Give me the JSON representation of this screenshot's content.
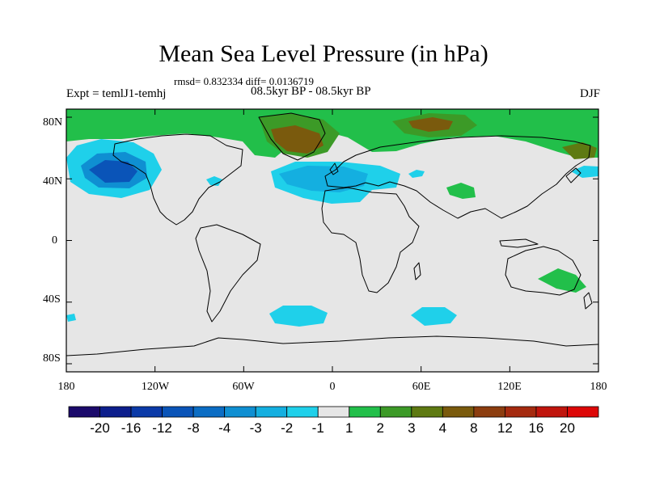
{
  "title": "Mean Sea Level Pressure (in hPa)",
  "stats": "rmsd= 0.832334 diff= 0.0136719",
  "experiment": "Expt = temlJ1-temhj",
  "period": "08.5kyr BP - 08.5kyr BP",
  "season": "DJF",
  "lat_labels": [
    "80N",
    "40N",
    "0",
    "40S",
    "80S"
  ],
  "lon_labels": [
    "180",
    "120W",
    "60W",
    "0",
    "60E",
    "120E",
    "180"
  ],
  "colorbar": {
    "colors": [
      "#1b0a6b",
      "#0d1e8c",
      "#0b3aa8",
      "#0a54b8",
      "#0b6dc4",
      "#0f8fd2",
      "#14afe0",
      "#1fd0ea",
      "#e6e6e6",
      "#22bf4a",
      "#3c9a27",
      "#5e7a12",
      "#7a5a0d",
      "#8c3d0f",
      "#a52a0f",
      "#c0150d",
      "#dd0707"
    ],
    "labels": [
      "-20",
      "-16",
      "-12",
      "-8",
      "-4",
      "-3",
      "-2",
      "-1",
      "1",
      "2",
      "3",
      "4",
      "8",
      "12",
      "16",
      "20"
    ]
  }
}
